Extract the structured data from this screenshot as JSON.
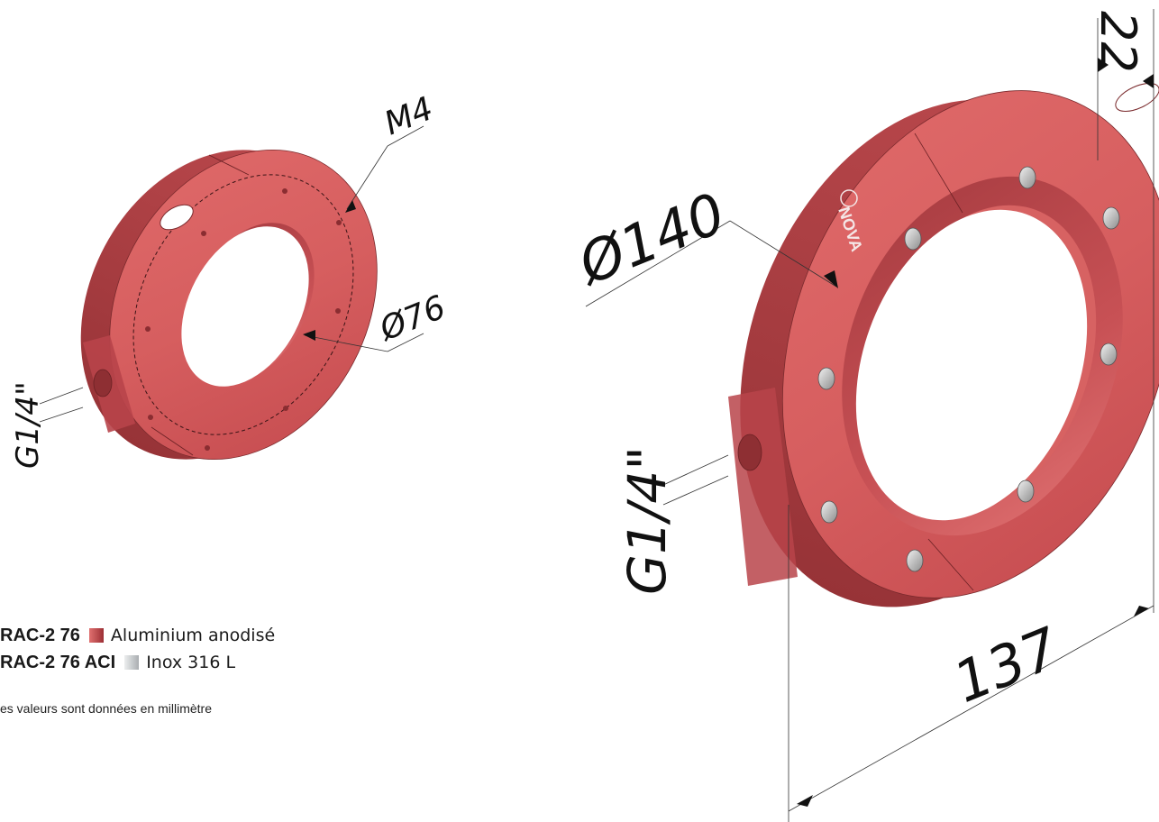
{
  "dimensions": {
    "small": {
      "thread": "M4",
      "bore": "Ø76",
      "port": "G1/4\""
    },
    "large": {
      "outer_diameter": "Ø140",
      "width": "137",
      "thickness": "22",
      "port": "G1/4\""
    }
  },
  "logo_text": "NOVA",
  "legend": {
    "items": [
      {
        "ref": "RAC-2 76",
        "material": "Aluminium anodisé",
        "swatch_color": "#b93a3f"
      },
      {
        "ref": "RAC-2 76 ACI",
        "material": "Inox 316 L",
        "swatch_color": "#c4c8cb"
      }
    ],
    "note": "es valeurs sont données en millimètre"
  },
  "colors": {
    "body": "#d35a5a",
    "body_dark": "#a93b3e",
    "body_light": "#e27272",
    "line": "#1e1e1e"
  }
}
